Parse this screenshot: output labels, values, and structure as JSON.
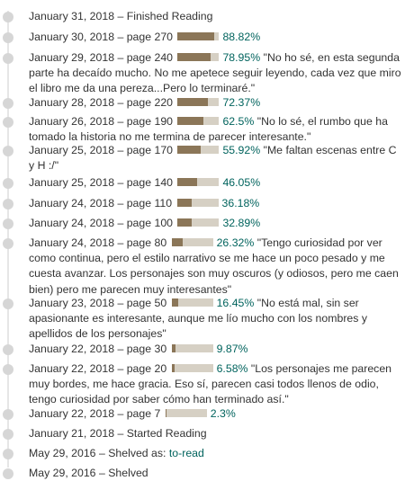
{
  "entries": [
    {
      "date": "January 31, 2018",
      "text": "Finished Reading"
    },
    {
      "date": "January 30, 2018",
      "page": "page 270",
      "percent": "88.82%",
      "progress": 88.82,
      "note": ""
    },
    {
      "date": "January 29, 2018",
      "page": "page 240",
      "percent": "78.95%",
      "progress": 78.95,
      "note": "\"No ho sé, en esta segunda parte ha decaído mucho. No me apetece seguir leyendo, cada vez que miro el libro me da una pereza...Pero lo terminaré.\""
    },
    {
      "date": "January 28, 2018",
      "page": "page 220",
      "percent": "72.37%",
      "progress": 72.37,
      "note": ""
    },
    {
      "date": "January 26, 2018",
      "page": "page 190",
      "percent": "62.5%",
      "progress": 62.5,
      "note": "\"No lo sé, el rumbo que ha tomado la historia no me termina de parecer interesante.\""
    },
    {
      "date": "January 25, 2018",
      "page": "page 170",
      "percent": "55.92%",
      "progress": 55.92,
      "note": "\"Me faltan escenas entre C y H :/\""
    },
    {
      "date": "January 25, 2018",
      "page": "page 140",
      "percent": "46.05%",
      "progress": 46.05,
      "note": ""
    },
    {
      "date": "January 24, 2018",
      "page": "page 110",
      "percent": "36.18%",
      "progress": 36.18,
      "note": ""
    },
    {
      "date": "January 24, 2018",
      "page": "page 100",
      "percent": "32.89%",
      "progress": 32.89,
      "note": ""
    },
    {
      "date": "January 24, 2018",
      "page": "page 80",
      "percent": "26.32%",
      "progress": 26.32,
      "note": "\"Tengo curiosidad por ver como continua, pero el estilo narrativo se me hace un poco pesado y me cuesta avanzar. Los personajes son muy oscuros (y odiosos, pero me caen bien) pero me parecen muy interesantes\""
    },
    {
      "date": "January 23, 2018",
      "page": "page 50",
      "percent": "16.45%",
      "progress": 16.45,
      "note": "\"No está mal, sin ser apasionante es interesante, aunque me lío mucho con los nombres y apellidos de los personajes\""
    },
    {
      "date": "January 22, 2018",
      "page": "page 30",
      "percent": "9.87%",
      "progress": 9.87,
      "note": ""
    },
    {
      "date": "January 22, 2018",
      "page": "page 20",
      "percent": "6.58%",
      "progress": 6.58,
      "note": "\"Los personajes me parecen muy bordes, me hace gracia. Eso sí, parecen casi todos llenos de odio, tengo curiosidad por saber cómo han terminado así.\""
    },
    {
      "date": "January 22, 2018",
      "page": "page 7",
      "percent": "2.3%",
      "progress": 2.3,
      "note": ""
    },
    {
      "date": "January 21, 2018",
      "text": "Started Reading"
    },
    {
      "date": "May 29, 2016",
      "text": "Shelved as:",
      "shelf": "to-read"
    },
    {
      "date": "May 29, 2016",
      "text": "Shelved"
    }
  ],
  "separator": "–",
  "colors": {
    "bar_fill": "#8b7658",
    "bar_track": "#d6d0c4",
    "link": "#00635d",
    "dot": "#d6d6d6",
    "line": "#e6e6e6"
  }
}
